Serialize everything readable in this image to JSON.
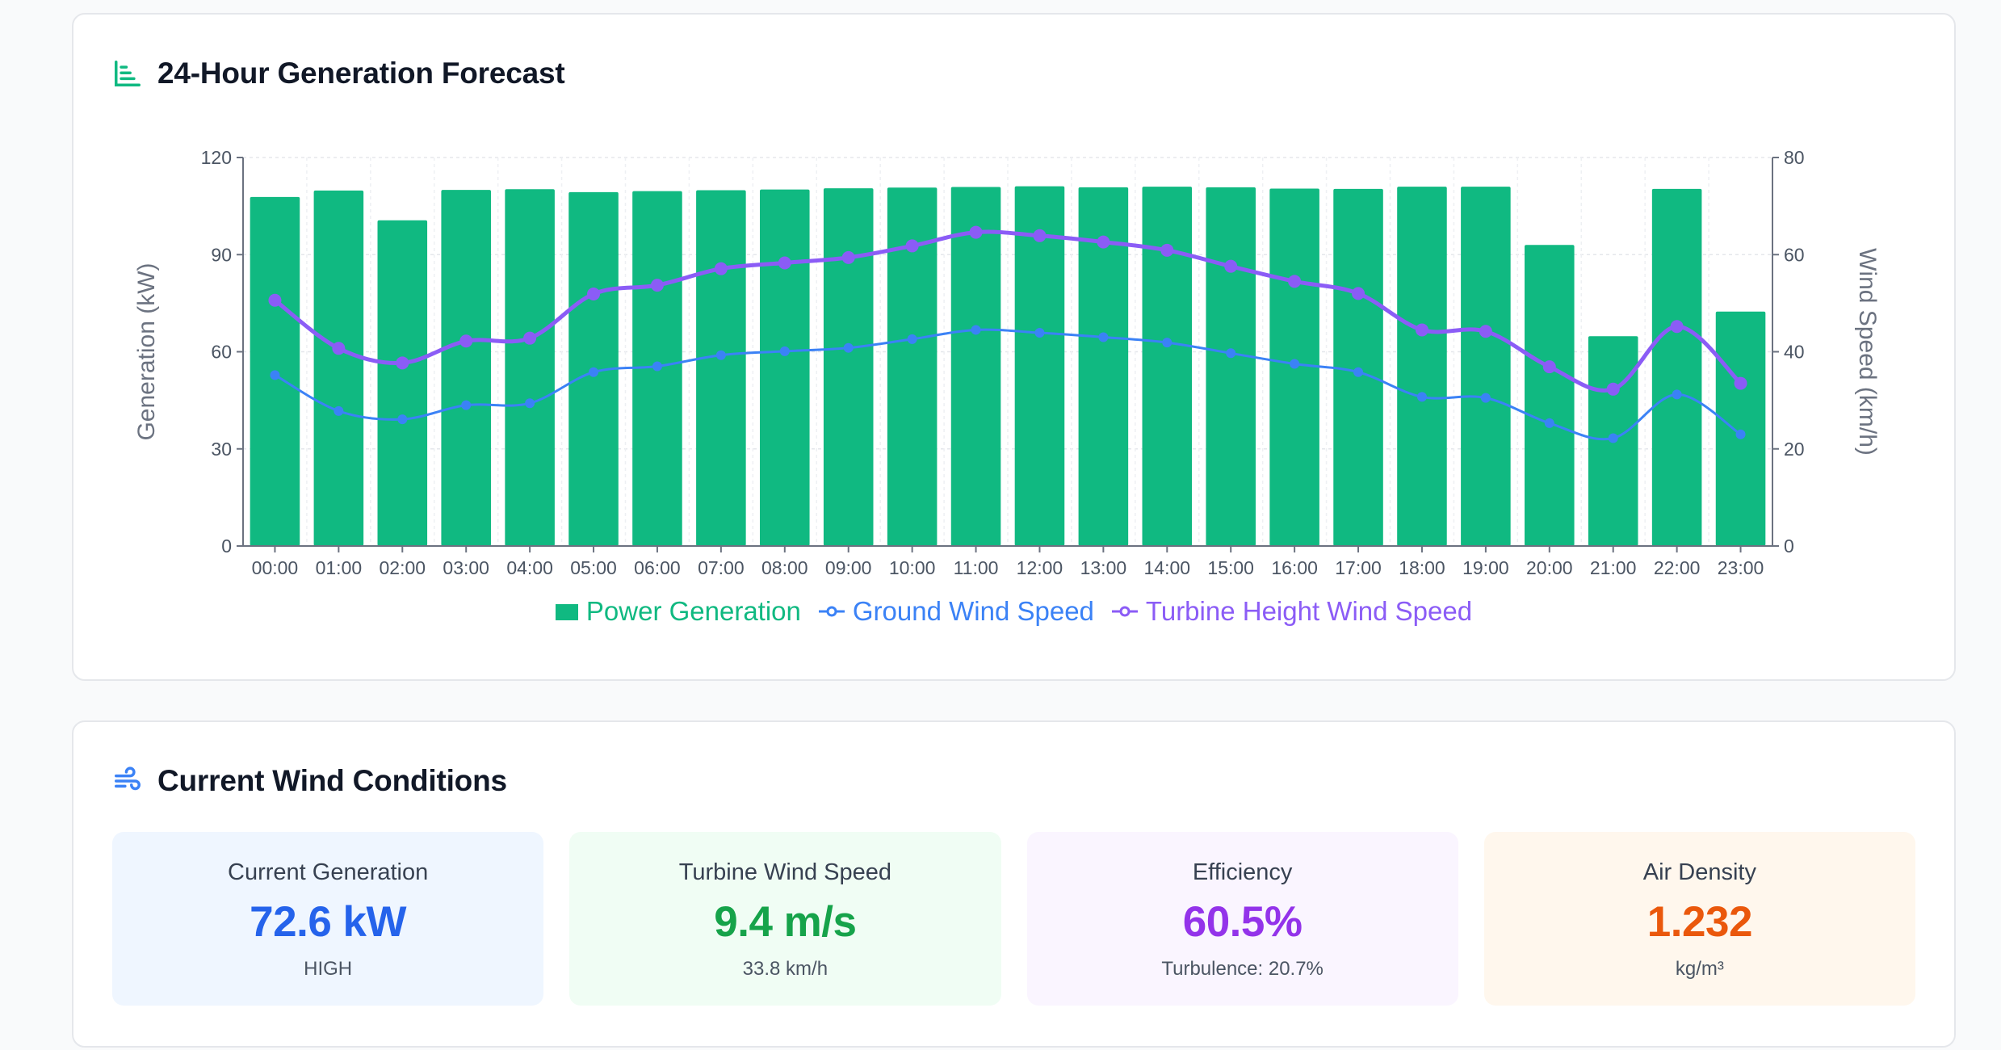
{
  "chart_section": {
    "title": "24-Hour Generation Forecast",
    "icon": "bar-chart-icon",
    "accent_color": "#10b981"
  },
  "chart_data": {
    "type": "bar",
    "x": [
      "00:00",
      "01:00",
      "02:00",
      "03:00",
      "04:00",
      "05:00",
      "06:00",
      "07:00",
      "08:00",
      "09:00",
      "10:00",
      "11:00",
      "12:00",
      "13:00",
      "14:00",
      "15:00",
      "16:00",
      "17:00",
      "18:00",
      "19:00",
      "20:00",
      "21:00",
      "22:00",
      "23:00"
    ],
    "series": [
      {
        "name": "Power Generation",
        "type": "bar",
        "axis": "left",
        "color": "#10b981",
        "values": [
          107.8,
          109.8,
          100.6,
          110.0,
          110.2,
          109.3,
          109.6,
          109.9,
          110.1,
          110.5,
          110.7,
          110.9,
          111.1,
          110.8,
          111.0,
          110.8,
          110.4,
          110.3,
          111.0,
          111.0,
          93.0,
          64.8,
          110.3,
          72.4
        ]
      },
      {
        "name": "Ground Wind Speed",
        "type": "line",
        "axis": "right",
        "color": "#3b82f6",
        "values": [
          35.2,
          27.8,
          26.1,
          29.0,
          29.4,
          35.8,
          37.0,
          39.3,
          40.1,
          40.8,
          42.6,
          44.5,
          43.9,
          43.0,
          41.9,
          39.7,
          37.5,
          35.8,
          30.7,
          30.5,
          25.3,
          22.2,
          31.2,
          23.0
        ]
      },
      {
        "name": "Turbine Height Wind Speed",
        "type": "line",
        "axis": "right",
        "color": "#8b5cf6",
        "values": [
          50.6,
          40.7,
          37.7,
          42.2,
          42.8,
          51.9,
          53.7,
          57.1,
          58.3,
          59.4,
          61.8,
          64.6,
          63.9,
          62.6,
          60.9,
          57.6,
          54.5,
          52.0,
          44.5,
          44.2,
          36.9,
          32.3,
          45.2,
          33.5
        ]
      }
    ],
    "ylabel": "Generation (kW)",
    "y2label": "Wind Speed (km/h)",
    "ylim": [
      0,
      120
    ],
    "y2lim": [
      0,
      80
    ],
    "yticks": [
      0,
      30,
      60,
      90,
      120
    ],
    "y2ticks": [
      0,
      20,
      40,
      60,
      80
    ],
    "grid": true,
    "legend_position": "bottom"
  },
  "conditions_section": {
    "title": "Current Wind Conditions",
    "icon": "wind-icon",
    "icon_color": "#3b82f6"
  },
  "stats": [
    {
      "label": "Current Generation",
      "value": "72.6 kW",
      "sub": "HIGH",
      "bg": "#eff6ff",
      "color": "#2563eb"
    },
    {
      "label": "Turbine Wind Speed",
      "value": "9.4 m/s",
      "sub": "33.8 km/h",
      "bg": "#f0fdf4",
      "color": "#16a34a"
    },
    {
      "label": "Efficiency",
      "value": "60.5%",
      "sub": "Turbulence: 20.7%",
      "bg": "#faf5ff",
      "color": "#9333ea"
    },
    {
      "label": "Air Density",
      "value": "1.232",
      "sub": "kg/m³",
      "bg": "#fff7ed",
      "color": "#ea580c"
    }
  ]
}
